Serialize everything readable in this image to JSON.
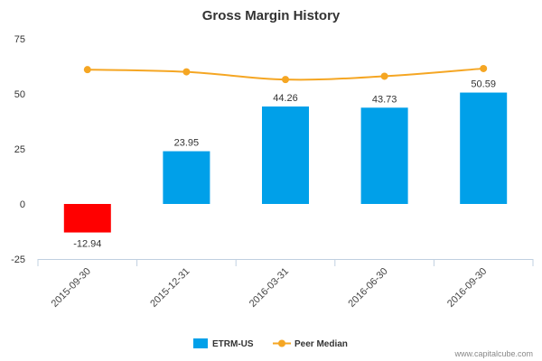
{
  "chart_data": {
    "type": "bar",
    "title": "Gross Margin History",
    "xlabel": "",
    "ylabel": "",
    "categories": [
      "2015-09-30",
      "2015-12-31",
      "2016-03-31",
      "2016-06-30",
      "2016-09-30"
    ],
    "series": [
      {
        "name": "ETRM-US",
        "type": "bar",
        "values": [
          -12.94,
          23.95,
          44.26,
          43.73,
          50.59
        ],
        "labels": [
          "-12.94",
          "23.95",
          "44.26",
          "43.73",
          "50.59"
        ],
        "color": "#00a0e9",
        "negative_color": "#ff0000"
      },
      {
        "name": "Peer Median",
        "type": "line",
        "values": [
          61.0,
          60.0,
          56.5,
          58.0,
          61.5
        ],
        "color": "#f5a623"
      }
    ],
    "ylim": [
      -25,
      75
    ],
    "yticks": [
      "75",
      "50",
      "25",
      "0",
      "-25"
    ],
    "grid": false,
    "legend": "bottom-center"
  },
  "credit": "www.capitalcube.com"
}
